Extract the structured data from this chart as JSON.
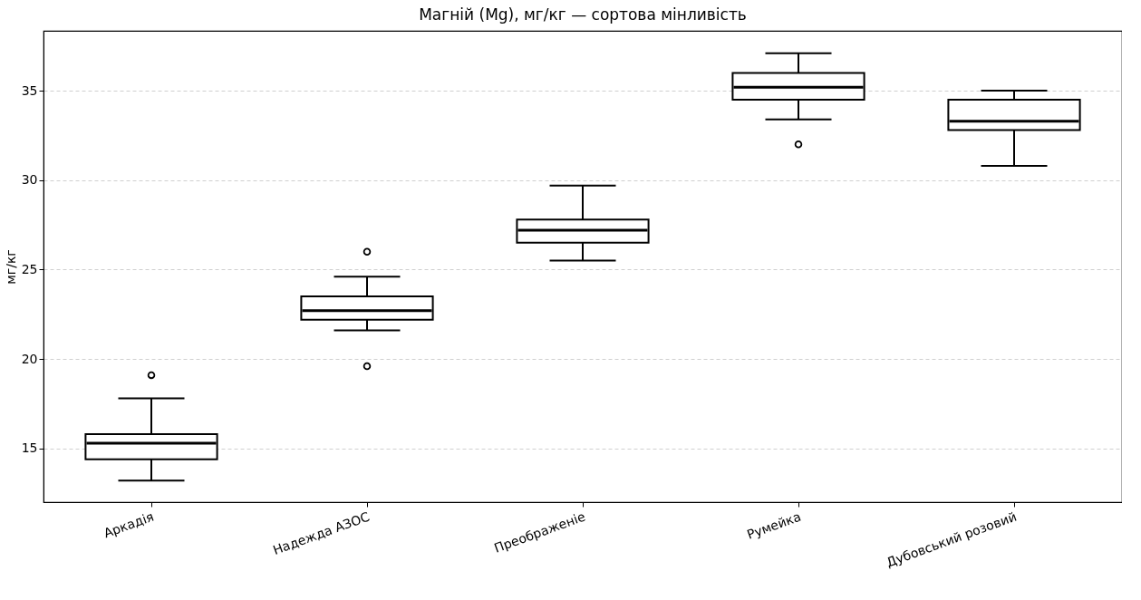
{
  "chart_data": {
    "type": "box",
    "title": "Магній (Mg), мг/кг — сортова мінливість",
    "ylabel": "мг/кг",
    "categories": [
      "Аркадія",
      "Надежда АЗОС",
      "Преображеніе",
      "Румейка",
      "Дубовський розовий"
    ],
    "boxes": [
      {
        "low": 13.2,
        "q1": 14.4,
        "median": 15.3,
        "q3": 15.8,
        "high": 17.8,
        "outliers": [
          19.1
        ]
      },
      {
        "low": 21.6,
        "q1": 22.2,
        "median": 22.7,
        "q3": 23.5,
        "high": 24.6,
        "outliers": [
          26.0,
          19.6
        ]
      },
      {
        "low": 25.5,
        "q1": 26.5,
        "median": 27.2,
        "q3": 27.8,
        "high": 29.7
      },
      {
        "low": 33.4,
        "q1": 34.5,
        "median": 35.2,
        "q3": 36.0,
        "high": 37.1,
        "outliers": [
          32.0
        ]
      },
      {
        "low": 30.8,
        "q1": 32.8,
        "median": 33.3,
        "q3": 34.5,
        "high": 35.0
      }
    ],
    "ylim": [
      12.0,
      38.35
    ],
    "yticks": [
      15,
      20,
      25,
      30,
      35
    ],
    "grid": "y"
  }
}
